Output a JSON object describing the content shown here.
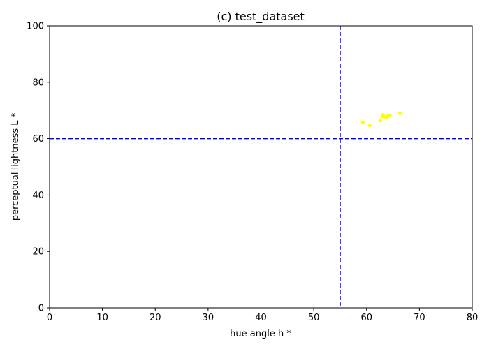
{
  "chart_data": {
    "type": "scatter",
    "title": "(c) test_dataset",
    "xlabel": "hue angle h *",
    "ylabel": "perceptual lightness L *",
    "xlim": [
      0,
      80
    ],
    "ylim": [
      0,
      100
    ],
    "xticks": [
      0,
      10,
      20,
      30,
      40,
      50,
      60,
      70,
      80
    ],
    "yticks": [
      0,
      20,
      40,
      60,
      80,
      100
    ],
    "grid": false,
    "point_color": "#ffff00",
    "reference_line_color": "#0000ff",
    "reference_lines": {
      "vertical_x": 55,
      "horizontal_y": 60
    },
    "points": [
      {
        "x": 59.3,
        "y": 65.8
      },
      {
        "x": 60.6,
        "y": 64.7
      },
      {
        "x": 62.6,
        "y": 66.4
      },
      {
        "x": 63.0,
        "y": 67.9
      },
      {
        "x": 63.1,
        "y": 68.4
      },
      {
        "x": 63.4,
        "y": 67.6
      },
      {
        "x": 63.8,
        "y": 67.4
      },
      {
        "x": 64.0,
        "y": 68.0
      },
      {
        "x": 64.4,
        "y": 68.2
      },
      {
        "x": 66.3,
        "y": 69.0
      }
    ]
  }
}
